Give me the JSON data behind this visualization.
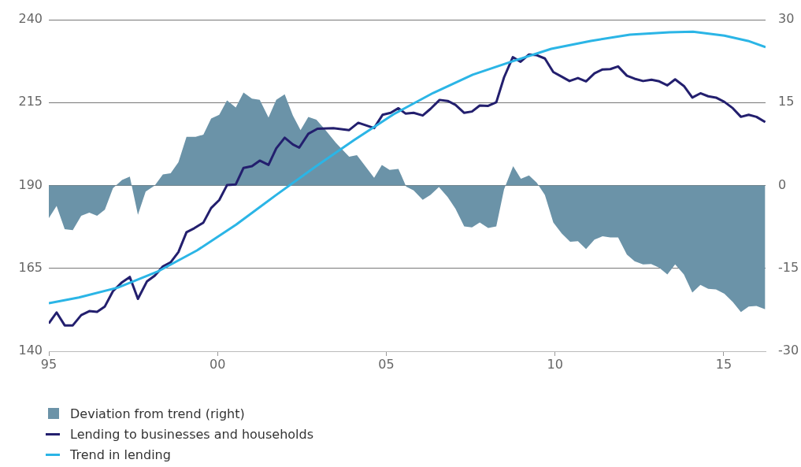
{
  "chart_data": {
    "type": "line",
    "xlim": [
      1995,
      2016.24
    ],
    "xticks": [
      {
        "value": 1995,
        "label": "95"
      },
      {
        "value": 2000,
        "label": "00"
      },
      {
        "value": 2005,
        "label": "05"
      },
      {
        "value": 2010,
        "label": "10"
      },
      {
        "value": 2015,
        "label": "15"
      }
    ],
    "ylim": [
      140,
      240
    ],
    "yticks": [
      140,
      165,
      190,
      215,
      240
    ],
    "y2lim": [
      -30,
      30
    ],
    "y2ticks": [
      -30,
      -15,
      0,
      15,
      30
    ],
    "grid": "y",
    "legend": "bottom",
    "marker": "none",
    "line_style": "solid",
    "series": [
      {
        "name": "Deviation from trend (right)",
        "type": "area",
        "axis": "y2",
        "color": "#6b93a8",
        "x": [
          1995.0,
          1995.23,
          1995.47,
          1995.71,
          1995.96,
          1996.2,
          1996.43,
          1996.66,
          1996.9,
          1997.17,
          1997.4,
          1997.64,
          1997.87,
          1998.14,
          1998.38,
          1998.61,
          1998.84,
          1999.08,
          1999.35,
          1999.58,
          1999.81,
          2000.05,
          2000.28,
          2000.54,
          2000.77,
          2001.02,
          2001.25,
          2001.51,
          2001.74,
          2001.99,
          2002.23,
          2002.46,
          2002.69,
          2002.93,
          2003.2,
          2003.51,
          2003.9,
          2004.13,
          2004.64,
          2004.87,
          2005.1,
          2005.36,
          2005.59,
          2005.81,
          2006.08,
          2006.31,
          2006.56,
          2006.82,
          2007.05,
          2007.31,
          2007.54,
          2007.77,
          2008.02,
          2008.26,
          2008.49,
          2008.76,
          2008.99,
          2009.23,
          2009.46,
          2009.7,
          2009.95,
          2010.2,
          2010.45,
          2010.68,
          2010.92,
          2011.17,
          2011.41,
          2011.64,
          2011.87,
          2012.13,
          2012.36,
          2012.61,
          2012.85,
          2013.09,
          2013.33,
          2013.56,
          2013.82,
          2014.07,
          2014.31,
          2014.54,
          2014.77,
          2015.02,
          2015.27,
          2015.51,
          2015.74,
          2015.97,
          2016.23
        ],
        "values": [
          -5.9,
          -3.7,
          -7.9,
          -8.1,
          -5.5,
          -4.9,
          -5.5,
          -4.4,
          -0.5,
          1.0,
          1.6,
          -5.3,
          -1.1,
          0,
          2.0,
          2.2,
          4.2,
          8.8,
          8.8,
          9.2,
          12.1,
          12.8,
          15.4,
          14.1,
          16.8,
          15.7,
          15.5,
          12.3,
          15.5,
          16.5,
          12.7,
          10.0,
          12.4,
          11.9,
          10.0,
          7.7,
          5.2,
          5.5,
          1.4,
          3.7,
          2.8,
          3.0,
          -0.2,
          -0.9,
          -2.6,
          -1.7,
          -0.3,
          -2.1,
          -4.2,
          -7.4,
          -7.6,
          -6.7,
          -7.7,
          -7.4,
          -0.7,
          3.5,
          1.2,
          1.8,
          0.5,
          -1.7,
          -6.7,
          -8.7,
          -10.2,
          -10.1,
          -11.5,
          -9.8,
          -9.2,
          -9.4,
          -9.4,
          -12.5,
          -13.7,
          -14.3,
          -14.2,
          -14.9,
          -16.1,
          -14.3,
          -16.1,
          -19.4,
          -18.0,
          -18.7,
          -18.8,
          -19.6,
          -21.1,
          -22.9,
          -21.9,
          -21.8,
          -22.4
        ]
      },
      {
        "name": "Lending to businesses and households",
        "type": "line",
        "color": "#231f6e",
        "x": [
          1995.0,
          1995.23,
          1995.47,
          1995.71,
          1995.96,
          1996.2,
          1996.43,
          1996.66,
          1996.9,
          1997.17,
          1997.4,
          1997.64,
          1997.91,
          1998.14,
          1998.38,
          1998.61,
          1998.84,
          1999.08,
          1999.31,
          1999.58,
          1999.81,
          2000.05,
          2000.28,
          2000.54,
          2000.77,
          2001.02,
          2001.25,
          2001.51,
          2001.74,
          2001.99,
          2002.23,
          2002.42,
          2002.69,
          2002.96,
          2003.43,
          2003.9,
          2004.17,
          2004.64,
          2004.89,
          2005.13,
          2005.36,
          2005.57,
          2005.81,
          2006.08,
          2006.31,
          2006.58,
          2006.82,
          2007.05,
          2007.31,
          2007.54,
          2007.77,
          2008.02,
          2008.26,
          2008.49,
          2008.75,
          2008.98,
          2009.23,
          2009.46,
          2009.7,
          2009.95,
          2010.2,
          2010.43,
          2010.68,
          2010.92,
          2011.17,
          2011.41,
          2011.64,
          2011.87,
          2012.13,
          2012.36,
          2012.61,
          2012.86,
          2013.09,
          2013.33,
          2013.56,
          2013.82,
          2014.07,
          2014.31,
          2014.54,
          2014.77,
          2015.02,
          2015.27,
          2015.51,
          2015.74,
          2015.97,
          2016.23
        ],
        "values": [
          148.4,
          151.7,
          147.8,
          147.8,
          150.9,
          152.1,
          151.9,
          153.5,
          158.1,
          160.8,
          162.4,
          155.8,
          161.1,
          162.8,
          165.6,
          166.8,
          169.9,
          175.9,
          177.1,
          178.8,
          183.2,
          185.6,
          190.1,
          190.3,
          195.3,
          195.8,
          197.5,
          196.2,
          201.2,
          204.4,
          202.4,
          201.4,
          205.6,
          207.1,
          207.3,
          206.7,
          208.9,
          207.3,
          211.3,
          211.9,
          213.3,
          211.7,
          211.9,
          211.1,
          213.1,
          215.8,
          215.5,
          214.3,
          211.9,
          212.3,
          214.1,
          214.0,
          215.1,
          222.6,
          228.7,
          227.3,
          229.5,
          229.3,
          228.3,
          224.2,
          222.8,
          221.5,
          222.4,
          221.4,
          223.8,
          225.0,
          225.1,
          225.9,
          223.1,
          222.2,
          221.5,
          221.9,
          221.4,
          220.2,
          222.0,
          220.0,
          216.5,
          217.8,
          216.9,
          216.5,
          215.2,
          213.3,
          210.7,
          211.3,
          210.7,
          209.1
        ]
      },
      {
        "name": "Trend in lending",
        "type": "line",
        "color": "#2bb5e6",
        "x": [
          1995.0,
          1995.89,
          1997.05,
          1998.22,
          1999.39,
          2000.55,
          2001.72,
          2002.89,
          2004.05,
          2005.22,
          2006.39,
          2007.56,
          2008.72,
          2009.89,
          2011.06,
          2012.22,
          2013.39,
          2014.09,
          2015.02,
          2015.72,
          2016.24
        ],
        "values": [
          154.5,
          156.2,
          159.2,
          164.0,
          170.4,
          178.2,
          187.0,
          195.6,
          203.7,
          211.5,
          217.9,
          223.4,
          227.4,
          231.2,
          233.6,
          235.5,
          236.2,
          236.4,
          235.2,
          233.6,
          231.7
        ]
      }
    ]
  }
}
